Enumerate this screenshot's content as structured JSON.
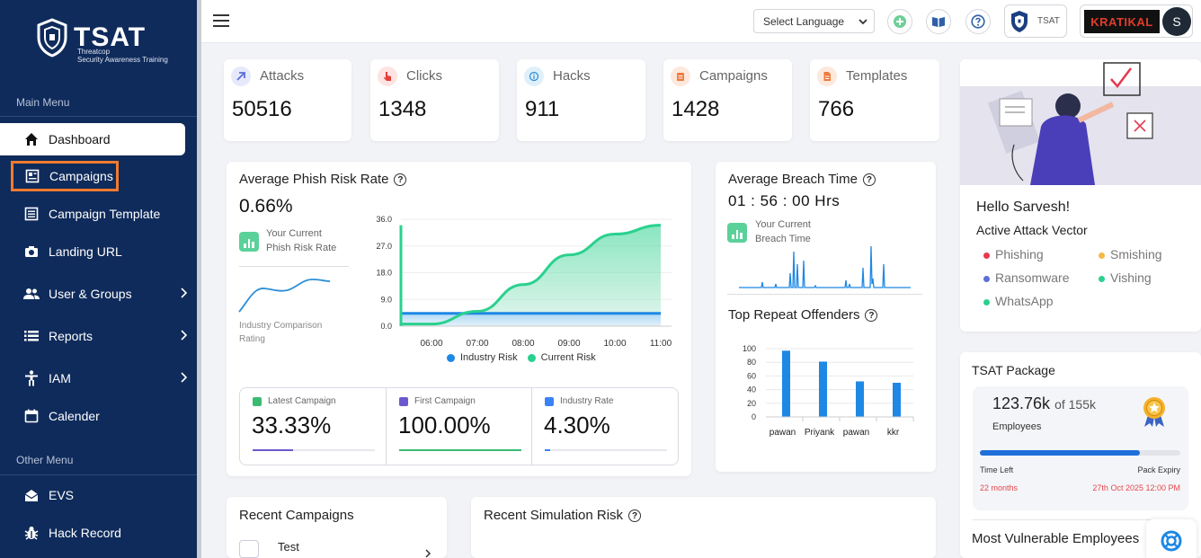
{
  "app": {
    "brand": "TSAT",
    "brand_sub": "Threatcop\nSecurity Awareness Training"
  },
  "sidebar": {
    "main_menu_label": "Main Menu",
    "other_menu_label": "Other Menu",
    "items": [
      {
        "label": "Dashboard",
        "icon": "home-icon"
      },
      {
        "label": "Campaigns",
        "icon": "campaign-icon"
      },
      {
        "label": "Campaign Template",
        "icon": "template-icon"
      },
      {
        "label": "Landing URL",
        "icon": "camera-icon"
      },
      {
        "label": "User & Groups",
        "icon": "users-icon"
      },
      {
        "label": "Reports",
        "icon": "list-icon"
      },
      {
        "label": "IAM",
        "icon": "person-icon"
      },
      {
        "label": "Calender",
        "icon": "calendar-icon"
      }
    ],
    "other_items": [
      {
        "label": "EVS",
        "icon": "mail-open-icon"
      },
      {
        "label": "Hack Record",
        "icon": "bug-icon"
      }
    ]
  },
  "topbar": {
    "language_select": "Select Language",
    "tsat_chip": "TSAT",
    "brand_logo": "KRATIKAL",
    "avatar_initial": "S"
  },
  "stats": [
    {
      "label": "Attacks",
      "value": "50516",
      "color": "#5b6fd6",
      "bg": "#e6e9fb"
    },
    {
      "label": "Clicks",
      "value": "1348",
      "color": "#e3403a",
      "bg": "#fde3e2"
    },
    {
      "label": "Hacks",
      "value": "911",
      "color": "#2d8fd6",
      "bg": "#dff0fb"
    },
    {
      "label": "Campaigns",
      "value": "1428",
      "color": "#ef7a3c",
      "bg": "#fde8dc"
    },
    {
      "label": "Templates",
      "value": "766",
      "color": "#ef7a3c",
      "bg": "#fde8dc"
    }
  ],
  "phish": {
    "title": "Average Phish Risk Rate",
    "value": "0.66%",
    "caption": "Your Current\nPhish Risk Rate",
    "industry_caption": "Industry Comparison\nRating",
    "latest_label": "Latest Campaign",
    "latest_value": "33.33%",
    "latest_fill": 0.33,
    "first_label": "First Campaign",
    "first_value": "100.00%",
    "first_fill": 1.0,
    "industry_label": "Industry Rate",
    "industry_value": "4.30%",
    "industry_fill": 0.043,
    "colors": {
      "latest": "#6a5acd",
      "first": "#3cba74",
      "industry": "#3b82f6"
    }
  },
  "chart_data": {
    "type": "area",
    "x": [
      "06:00",
      "07:00",
      "08:00",
      "09:00",
      "10:00",
      "11:00"
    ],
    "ylim": [
      0,
      36
    ],
    "yticks": [
      "36.0",
      "27.0",
      "18.0",
      "9.0",
      "0.0"
    ],
    "series": [
      {
        "name": "Industry Risk",
        "color": "#1e88e5",
        "values": [
          4.3,
          4.3,
          4.3,
          4.3,
          4.3,
          4.3
        ]
      },
      {
        "name": "Current Risk",
        "color": "#2ad18e",
        "values": [
          0.7,
          5,
          14,
          24,
          31,
          34
        ]
      }
    ]
  },
  "breach": {
    "title": "Average Breach Time",
    "value": "01 : 56 : 00 Hrs",
    "caption": "Your Current\nBreach Time"
  },
  "offenders": {
    "title": "Top Repeat Offenders",
    "categories": [
      "pawan",
      "Priyank",
      "pawan",
      "kkr"
    ],
    "values": [
      97,
      81,
      52,
      50
    ],
    "yticks": [
      "100",
      "80",
      "60",
      "40",
      "20",
      "0"
    ],
    "ylim": [
      0,
      100
    ]
  },
  "welcome": {
    "greeting": "Hello Sarvesh!",
    "vector_title": "Active Attack Vector",
    "vectors": [
      {
        "label": "Phishing",
        "color": "#e53950"
      },
      {
        "label": "Smishing",
        "color": "#f5b942"
      },
      {
        "label": "Ransomware",
        "color": "#5b6fd6"
      },
      {
        "label": "Vishing",
        "color": "#2ad18e"
      },
      {
        "label": "WhatsApp",
        "color": "#2ad18e"
      }
    ]
  },
  "package": {
    "title": "TSAT Package",
    "used": "123.76k",
    "of_total": "of 155k",
    "unit": "Employees",
    "progress": 0.8,
    "time_left_label": "Time Left",
    "time_left_value": "22 months",
    "expiry_label": "Pack Expiry",
    "expiry_value": "27th Oct 2025 12:00 PM"
  },
  "recent_campaigns": {
    "title": "Recent Campaigns",
    "first_item": "Test"
  },
  "recent_sim": {
    "title": "Recent Simulation Risk"
  },
  "most_vulnerable": {
    "title": "Most Vulnerable Employees"
  }
}
